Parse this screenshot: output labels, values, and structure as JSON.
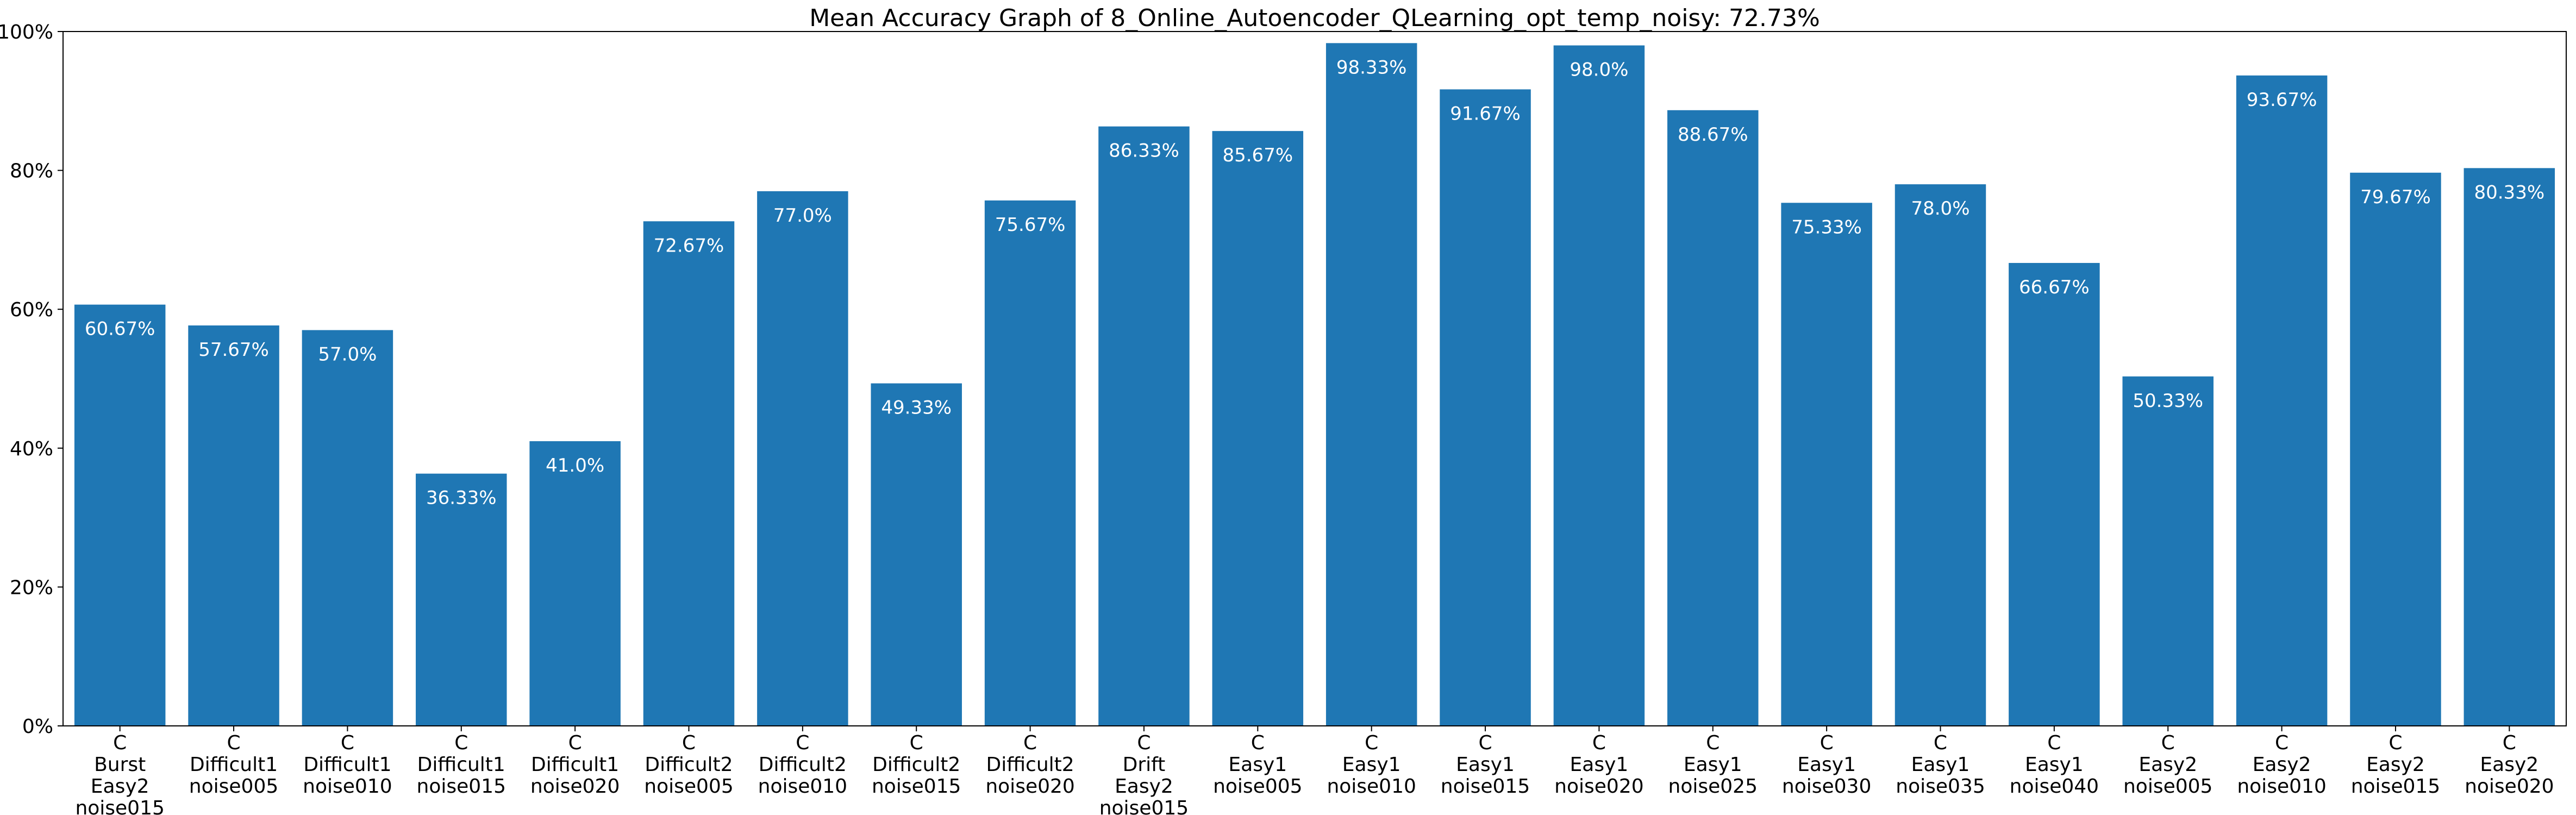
{
  "chart_data": {
    "type": "bar",
    "title": "Mean Accuracy Graph of 8_Online_Autoencoder_QLearning_opt_temp_noisy: 72.73%",
    "xlabel": "",
    "ylabel": "",
    "ylim": [
      0,
      100
    ],
    "yticks": [
      "0%",
      "20%",
      "40%",
      "60%",
      "80%",
      "100%"
    ],
    "ytick_values": [
      0,
      20,
      40,
      60,
      80,
      100
    ],
    "grid": false,
    "bar_color": "#1f77b4",
    "categories": [
      [
        "C",
        "Burst",
        "Easy2",
        "noise015"
      ],
      [
        "C",
        "Difficult1",
        "noise005"
      ],
      [
        "C",
        "Difficult1",
        "noise010"
      ],
      [
        "C",
        "Difficult1",
        "noise015"
      ],
      [
        "C",
        "Difficult1",
        "noise020"
      ],
      [
        "C",
        "Difficult2",
        "noise005"
      ],
      [
        "C",
        "Difficult2",
        "noise010"
      ],
      [
        "C",
        "Difficult2",
        "noise015"
      ],
      [
        "C",
        "Difficult2",
        "noise020"
      ],
      [
        "C",
        "Drift",
        "Easy2",
        "noise015"
      ],
      [
        "C",
        "Easy1",
        "noise005"
      ],
      [
        "C",
        "Easy1",
        "noise010"
      ],
      [
        "C",
        "Easy1",
        "noise015"
      ],
      [
        "C",
        "Easy1",
        "noise020"
      ],
      [
        "C",
        "Easy1",
        "noise025"
      ],
      [
        "C",
        "Easy1",
        "noise030"
      ],
      [
        "C",
        "Easy1",
        "noise035"
      ],
      [
        "C",
        "Easy1",
        "noise040"
      ],
      [
        "C",
        "Easy2",
        "noise005"
      ],
      [
        "C",
        "Easy2",
        "noise010"
      ],
      [
        "C",
        "Easy2",
        "noise015"
      ],
      [
        "C",
        "Easy2",
        "noise020"
      ]
    ],
    "values": [
      60.67,
      57.67,
      57.0,
      36.33,
      41.0,
      72.67,
      77.0,
      49.33,
      75.67,
      86.33,
      85.67,
      98.33,
      91.67,
      98.0,
      88.67,
      75.33,
      78.0,
      66.67,
      50.33,
      93.67,
      79.67,
      80.33
    ],
    "data_labels": [
      "60.67%",
      "57.67%",
      "57.0%",
      "36.33%",
      "41.0%",
      "72.67%",
      "77.0%",
      "49.33%",
      "75.67%",
      "86.33%",
      "85.67%",
      "98.33%",
      "91.67%",
      "98.0%",
      "88.67%",
      "75.33%",
      "78.0%",
      "66.67%",
      "50.33%",
      "93.67%",
      "79.67%",
      "80.33%"
    ]
  }
}
